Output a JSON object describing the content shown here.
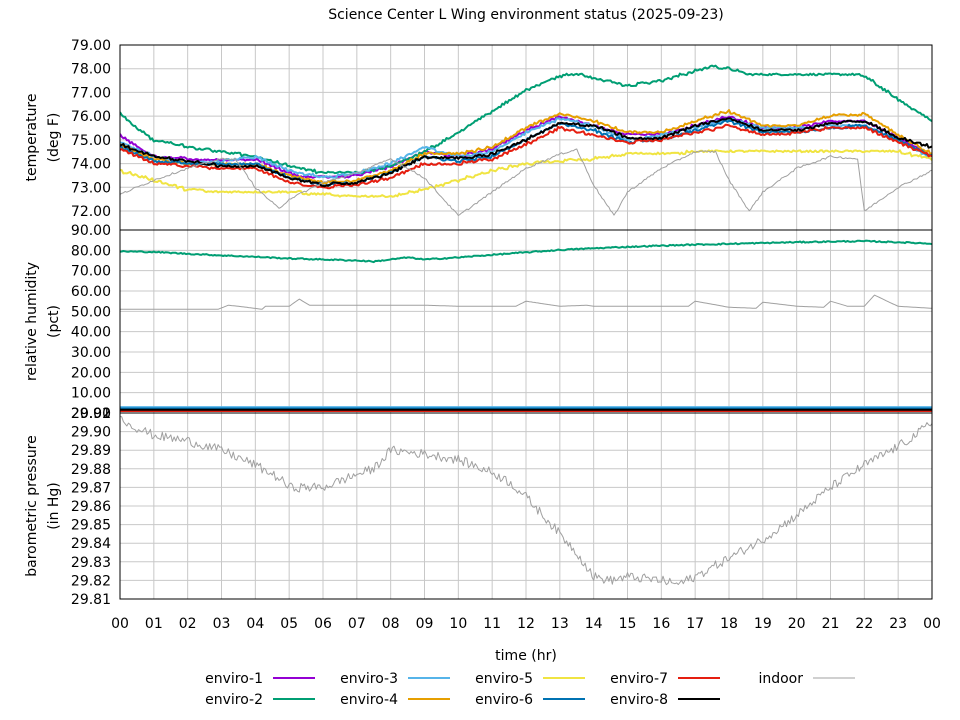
{
  "chart_data": {
    "type": "line",
    "title": "Science Center L Wing environment status (2025-09-23)",
    "xlabel": "time (hr)",
    "x_tick_labels": [
      "00",
      "01",
      "02",
      "03",
      "04",
      "05",
      "06",
      "07",
      "08",
      "09",
      "10",
      "11",
      "12",
      "13",
      "14",
      "15",
      "16",
      "17",
      "18",
      "19",
      "20",
      "21",
      "22",
      "23",
      "00"
    ],
    "xlim": [
      0,
      24
    ],
    "grid": true,
    "legend_position": "bottom",
    "legend": [
      {
        "name": "enviro-1",
        "color": "#9400d3"
      },
      {
        "name": "enviro-2",
        "color": "#009e73"
      },
      {
        "name": "enviro-3",
        "color": "#56b4e9"
      },
      {
        "name": "enviro-4",
        "color": "#e69f00"
      },
      {
        "name": "enviro-5",
        "color": "#f0e442"
      },
      {
        "name": "enviro-6",
        "color": "#0072b2"
      },
      {
        "name": "enviro-7",
        "color": "#e51e10"
      },
      {
        "name": "enviro-8",
        "color": "#000000"
      },
      {
        "name": "indoor",
        "color": "#a0a0a0"
      }
    ],
    "panels": [
      {
        "ylabel": [
          "temperature",
          "(deg F)"
        ],
        "ylim": [
          71.2,
          79.0
        ],
        "y_tick_labels": [
          "72.00",
          "73.00",
          "74.00",
          "75.00",
          "76.00",
          "77.00",
          "78.00",
          "79.00"
        ],
        "series": [
          {
            "name": "enviro-1",
            "x": [
              0,
              0.5,
              1,
              2,
              3,
              4,
              5,
              5.5,
              6,
              7,
              8,
              9,
              10,
              11,
              12,
              13,
              14,
              15,
              16,
              17,
              18,
              19,
              20,
              21,
              22,
              23,
              24
            ],
            "y": [
              75.2,
              74.7,
              74.3,
              74.2,
              74.2,
              74.2,
              73.6,
              73.4,
              73.4,
              73.5,
              73.9,
              74.5,
              74.3,
              74.6,
              75.4,
              76.0,
              75.6,
              75.2,
              75.2,
              75.6,
              76.0,
              75.5,
              75.5,
              75.8,
              75.8,
              75.1,
              74.3
            ]
          },
          {
            "name": "enviro-2",
            "x": [
              0,
              0.5,
              1,
              2,
              3,
              4,
              5,
              6,
              7,
              8,
              9,
              10,
              11,
              12,
              13,
              13.5,
              14,
              15,
              16,
              17,
              17.5,
              18,
              18.5,
              19,
              20,
              21,
              22,
              23,
              24
            ],
            "y": [
              76.1,
              75.5,
              75.0,
              74.7,
              74.5,
              74.3,
              73.9,
              73.6,
              73.6,
              73.9,
              74.5,
              75.3,
              76.2,
              77.1,
              77.7,
              77.8,
              77.6,
              77.3,
              77.5,
              77.9,
              78.1,
              78.0,
              77.8,
              77.8,
              77.8,
              77.8,
              77.7,
              76.7,
              75.8
            ]
          },
          {
            "name": "enviro-3",
            "x": [
              0,
              1,
              2,
              3,
              4,
              5,
              6,
              7,
              8,
              9,
              10,
              11,
              12,
              13,
              14,
              15,
              16,
              17,
              18,
              19,
              20,
              21,
              22,
              23,
              24
            ],
            "y": [
              74.9,
              74.3,
              74.0,
              74.1,
              74.3,
              73.7,
              73.4,
              73.6,
              74.0,
              74.7,
              74.3,
              74.5,
              75.3,
              75.9,
              75.6,
              75.0,
              75.2,
              75.5,
              75.9,
              75.5,
              75.5,
              75.6,
              75.6,
              75.0,
              74.2
            ]
          },
          {
            "name": "enviro-4",
            "x": [
              0,
              1,
              2,
              3,
              4,
              5,
              6,
              7,
              8,
              9,
              10,
              11,
              12,
              13,
              14,
              15,
              16,
              17,
              18,
              19,
              20,
              21,
              22,
              23,
              24
            ],
            "y": [
              74.8,
              74.2,
              74.0,
              74.0,
              74.0,
              73.5,
              73.2,
              73.3,
              73.7,
              74.4,
              74.4,
              74.7,
              75.5,
              76.1,
              75.8,
              75.3,
              75.3,
              75.8,
              76.2,
              75.6,
              75.6,
              76.0,
              76.1,
              75.2,
              74.4
            ]
          },
          {
            "name": "enviro-5",
            "x": [
              0,
              1,
              2,
              3,
              4,
              5,
              6,
              7,
              8,
              9,
              10,
              11,
              12,
              13,
              14,
              15,
              16,
              17,
              18,
              19,
              20,
              21,
              22,
              23,
              24
            ],
            "y": [
              73.7,
              73.3,
              72.9,
              72.8,
              72.8,
              72.8,
              72.7,
              72.6,
              72.6,
              72.9,
              73.3,
              73.7,
              74.0,
              74.1,
              74.2,
              74.4,
              74.4,
              74.5,
              74.5,
              74.5,
              74.5,
              74.5,
              74.5,
              74.5,
              74.2
            ]
          },
          {
            "name": "enviro-6",
            "x": [
              0,
              1,
              2,
              3,
              4,
              5,
              6,
              7,
              8,
              9,
              10,
              11,
              12,
              13,
              14,
              15,
              16,
              17,
              18,
              19,
              20,
              21,
              22,
              23,
              24
            ],
            "y": [
              74.7,
              74.1,
              74.0,
              74.0,
              74.0,
              73.4,
              73.1,
              73.2,
              73.6,
              74.3,
              74.1,
              74.3,
              75.0,
              75.7,
              75.4,
              74.9,
              75.0,
              75.4,
              75.8,
              75.3,
              75.3,
              75.5,
              75.6,
              75.0,
              74.3
            ]
          },
          {
            "name": "enviro-7",
            "x": [
              0,
              1,
              2,
              3,
              4,
              5,
              6,
              7,
              8,
              9,
              10,
              11,
              12,
              13,
              14,
              15,
              16,
              17,
              18,
              19,
              20,
              21,
              22,
              23,
              24
            ],
            "y": [
              74.6,
              74.0,
              73.9,
              73.8,
              73.8,
              73.2,
              73.0,
              73.1,
              73.4,
              74.0,
              74.0,
              74.2,
              74.8,
              75.5,
              75.2,
              74.9,
              75.0,
              75.3,
              75.6,
              75.2,
              75.3,
              75.5,
              75.5,
              74.9,
              74.3
            ]
          },
          {
            "name": "enviro-8",
            "x": [
              0,
              1,
              2,
              3,
              4,
              5,
              6,
              7,
              8,
              9,
              10,
              11,
              12,
              13,
              14,
              15,
              16,
              17,
              18,
              19,
              20,
              21,
              22,
              23,
              24
            ],
            "y": [
              74.8,
              74.3,
              74.1,
              73.9,
              73.9,
              73.4,
              73.1,
              73.2,
              73.6,
              74.3,
              74.2,
              74.4,
              75.0,
              75.7,
              75.6,
              75.1,
              75.1,
              75.6,
              75.9,
              75.4,
              75.4,
              75.7,
              75.8,
              75.1,
              74.7
            ]
          },
          {
            "name": "indoor",
            "x": [
              0,
              0.5,
              1,
              2,
              3,
              3.4,
              4,
              4.7,
              5,
              6,
              7,
              8,
              9,
              10,
              11,
              12,
              13,
              13.5,
              14,
              14.6,
              15,
              16,
              17,
              17.6,
              18,
              18.6,
              19,
              20,
              21,
              21.8,
              22,
              23,
              24
            ],
            "y": [
              72.7,
              73.0,
              73.3,
              73.8,
              74.2,
              74.2,
              73.0,
              72.1,
              72.5,
              73.2,
              73.6,
              74.2,
              73.4,
              71.8,
              72.8,
              73.8,
              74.4,
              74.6,
              73.1,
              71.8,
              72.8,
              73.8,
              74.5,
              74.5,
              73.3,
              72.0,
              72.8,
              73.8,
              74.3,
              74.2,
              72.0,
              73.0,
              73.7
            ]
          }
        ]
      },
      {
        "ylabel": [
          "relative humidity",
          "(pct)"
        ],
        "ylim": [
          0,
          90
        ],
        "y_tick_labels": [
          "0.00",
          "10.00",
          "20.00",
          "30.00",
          "40.00",
          "50.00",
          "60.00",
          "70.00",
          "80.00",
          "90.00"
        ],
        "series": [
          {
            "name": "enviro-2",
            "x": [
              0,
              1,
              2,
              3,
              4,
              5,
              6,
              7,
              7.5,
              8,
              8.5,
              9,
              10,
              11,
              12,
              13,
              14,
              15,
              16,
              17,
              18,
              19,
              20,
              21,
              22,
              23,
              24
            ],
            "y": [
              79.5,
              79.2,
              78.3,
              77.5,
              76.8,
              76.0,
              75.5,
              75.0,
              74.5,
              75.5,
              76.5,
              75.5,
              76.5,
              77.8,
              79.0,
              80.2,
              81.0,
              81.7,
              82.3,
              82.8,
              83.2,
              83.6,
              84.0,
              84.3,
              84.5,
              84.0,
              83.3
            ]
          },
          {
            "name": "indoor",
            "x": [
              0,
              2,
              2.9,
              3.2,
              3.5,
              4.2,
              4.3,
              5,
              5.3,
              5.6,
              6,
              7,
              8,
              9,
              10,
              11,
              11.7,
              12,
              13,
              13.8,
              14,
              15,
              16,
              16.8,
              17,
              18,
              18.8,
              19,
              20,
              20.8,
              21,
              21.5,
              22,
              22.3,
              22.8,
              23,
              24
            ],
            "y": [
              51.0,
              51.0,
              51.0,
              53.0,
              52.5,
              51.0,
              52.5,
              52.5,
              56.0,
              53.0,
              53.0,
              53.0,
              53.0,
              53.0,
              52.5,
              52.5,
              52.5,
              55.0,
              52.5,
              53.0,
              52.5,
              52.5,
              52.5,
              52.5,
              55.0,
              52.0,
              51.5,
              54.5,
              52.5,
              52.0,
              55.0,
              52.5,
              52.5,
              58.0,
              54.0,
              52.5,
              51.5
            ]
          }
        ],
        "flat_series_near_zero": [
          {
            "name": "enviro-1",
            "value": 2.5
          },
          {
            "name": "enviro-3",
            "value": 2.9
          },
          {
            "name": "enviro-4",
            "value": 1.8
          },
          {
            "name": "enviro-5",
            "value": 1.3
          },
          {
            "name": "enviro-6",
            "value": 2.2
          },
          {
            "name": "enviro-7",
            "value": 1.0
          },
          {
            "name": "enviro-8",
            "value": 1.6
          }
        ]
      },
      {
        "ylabel": [
          "barometric pressure",
          "(in Hg)"
        ],
        "ylim": [
          29.81,
          29.91
        ],
        "y_tick_labels": [
          "29.81",
          "29.82",
          "29.83",
          "29.84",
          "29.85",
          "29.86",
          "29.87",
          "29.88",
          "29.89",
          "29.90",
          "29.91"
        ],
        "top_tick_label": "29.92",
        "series": [
          {
            "name": "indoor",
            "x": [
              0,
              0.5,
              1,
              2,
              3,
              4,
              4.7,
              5,
              6,
              7,
              7.5,
              8,
              9,
              10,
              11,
              11.5,
              12,
              12.5,
              13,
              13.5,
              14,
              14.5,
              15,
              16,
              16.5,
              17,
              18,
              19,
              20,
              21,
              22,
              23,
              23.5,
              24
            ],
            "y": [
              29.907,
              29.902,
              29.898,
              29.895,
              29.89,
              29.882,
              29.875,
              29.87,
              29.87,
              29.877,
              29.88,
              29.89,
              29.888,
              29.885,
              29.878,
              29.873,
              29.865,
              29.855,
              29.845,
              29.835,
              29.822,
              29.82,
              29.822,
              29.82,
              29.818,
              29.822,
              29.832,
              29.842,
              29.855,
              29.87,
              29.882,
              29.892,
              29.898,
              29.905
            ]
          }
        ]
      }
    ]
  }
}
